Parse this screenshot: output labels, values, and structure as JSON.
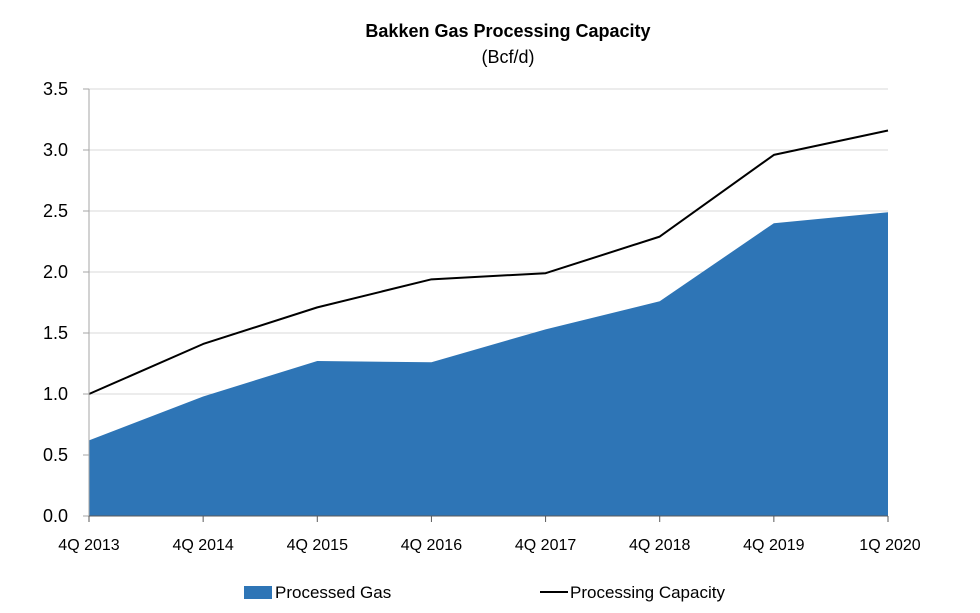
{
  "chart_data": {
    "type": "area",
    "title": "Bakken Gas Processing Capacity",
    "subtitle": "(Bcf/d)",
    "categories": [
      "4Q 2013",
      "4Q 2014",
      "4Q 2015",
      "4Q 2016",
      "4Q 2017",
      "4Q 2018",
      "4Q 2019",
      "1Q 2020"
    ],
    "series": [
      {
        "name": "Processed Gas",
        "kind": "area",
        "color": "#2e75b6",
        "values": [
          0.62,
          0.98,
          1.27,
          1.26,
          1.53,
          1.76,
          2.4,
          2.49
        ]
      },
      {
        "name": "Processing Capacity",
        "kind": "line",
        "color": "#000000",
        "values": [
          1.0,
          1.41,
          1.71,
          1.94,
          1.99,
          2.29,
          2.96,
          3.16
        ]
      }
    ],
    "ylim": [
      0,
      3.5
    ],
    "yticks": [
      "0.0",
      "0.5",
      "1.0",
      "1.5",
      "2.0",
      "2.5",
      "3.0",
      "3.5"
    ],
    "grid": "horizontal",
    "legend_position": "bottom"
  }
}
